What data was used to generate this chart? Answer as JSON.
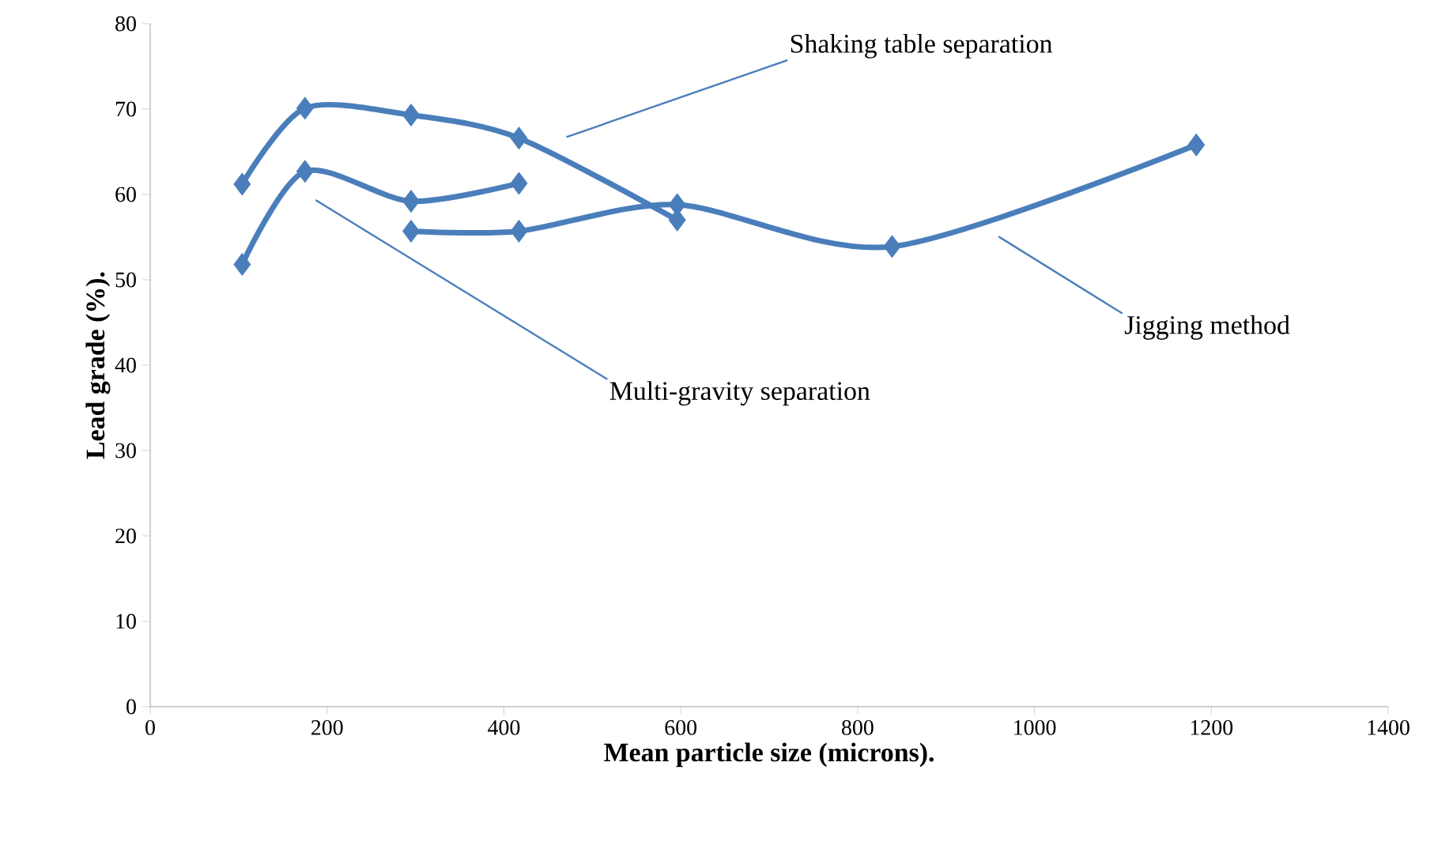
{
  "chart_data": {
    "type": "line",
    "xlabel": "Mean particle size (microns).",
    "ylabel": "Lead grade (%).",
    "xlim": [
      0,
      1400
    ],
    "xticks": [
      0,
      200,
      400,
      600,
      800,
      1000,
      1200,
      1400
    ],
    "ylim": [
      0,
      80
    ],
    "yticks": [
      0,
      10,
      20,
      30,
      40,
      50,
      60,
      70,
      80
    ],
    "marker": "diamond",
    "line_style": "solid",
    "grid": false,
    "legend": false,
    "series": [
      {
        "name": "Shaking table separation",
        "color": "#4a7ebb",
        "x": [
          104,
          175,
          295,
          417,
          596
        ],
        "values": [
          61.2,
          70.1,
          69.3,
          66.6,
          57.0
        ]
      },
      {
        "name": "Multi-gravity separation",
        "color": "#4a7ebb",
        "x": [
          104,
          175,
          295,
          417
        ],
        "values": [
          51.8,
          62.7,
          59.2,
          61.3
        ]
      },
      {
        "name": "Jigging  method",
        "color": "#4a7ebb",
        "x": [
          295,
          417,
          596,
          839,
          1183
        ],
        "values": [
          55.7,
          55.7,
          58.8,
          53.9,
          65.8
        ]
      }
    ]
  }
}
